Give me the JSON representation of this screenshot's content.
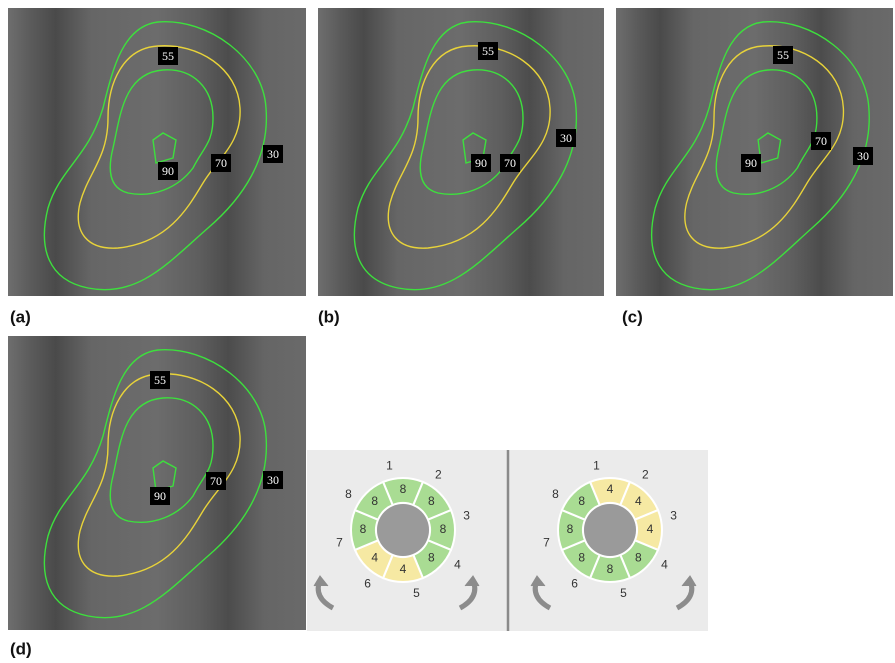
{
  "panels": [
    {
      "label": "(a)",
      "contours": [
        55,
        90,
        70,
        30
      ]
    },
    {
      "label": "(b)",
      "contours": [
        55,
        90,
        70,
        30
      ]
    },
    {
      "label": "(c)",
      "contours": [
        55,
        90,
        70,
        30
      ]
    },
    {
      "label": "(d)",
      "contours": [
        55,
        90,
        70,
        30
      ]
    }
  ],
  "rings": [
    {
      "sectors": [
        {
          "number": 1,
          "value": 8,
          "color": "#a9dc93"
        },
        {
          "number": 2,
          "value": 8,
          "color": "#a9dc93"
        },
        {
          "number": 3,
          "value": 8,
          "color": "#a9dc93"
        },
        {
          "number": 4,
          "value": 8,
          "color": "#a9dc93"
        },
        {
          "number": 5,
          "value": 4,
          "color": "#f6e9a3"
        },
        {
          "number": 6,
          "value": 4,
          "color": "#f6e9a3"
        },
        {
          "number": 7,
          "value": 8,
          "color": "#a9dc93"
        },
        {
          "number": 8,
          "value": 8,
          "color": "#a9dc93"
        }
      ]
    },
    {
      "sectors": [
        {
          "number": 1,
          "value": 4,
          "color": "#f6e9a3"
        },
        {
          "number": 2,
          "value": 4,
          "color": "#f6e9a3"
        },
        {
          "number": 3,
          "value": 4,
          "color": "#f6e9a3"
        },
        {
          "number": 4,
          "value": 8,
          "color": "#a9dc93"
        },
        {
          "number": 5,
          "value": 8,
          "color": "#a9dc93"
        },
        {
          "number": 6,
          "value": 8,
          "color": "#a9dc93"
        },
        {
          "number": 7,
          "value": 8,
          "color": "#a9dc93"
        },
        {
          "number": 8,
          "value": 8,
          "color": "#a9dc93"
        }
      ]
    }
  ]
}
